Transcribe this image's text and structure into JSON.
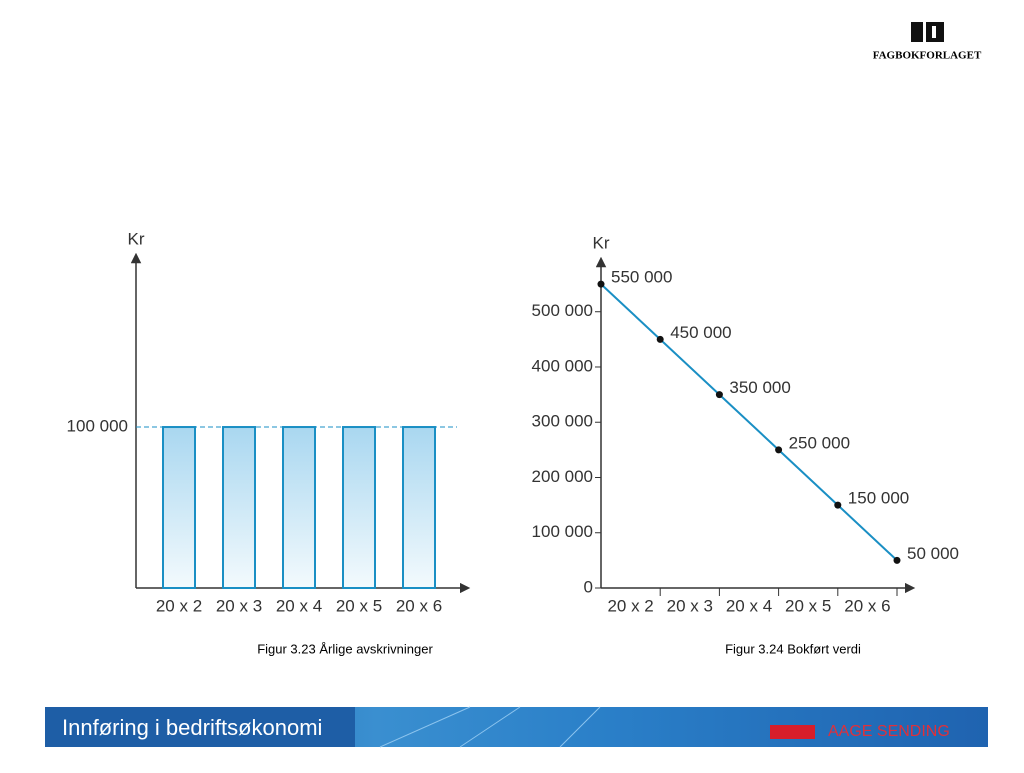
{
  "logo": "FAGBOKFORLAGET",
  "footer": {
    "title": "Innføring i bedriftsøkonomi",
    "author": "AAGE SENDING"
  },
  "chart_data": [
    {
      "type": "bar",
      "caption": "Figur 3.23 Årlige avskrivninger",
      "y_label": "Kr",
      "categories": [
        "20 x 2",
        "20 x 3",
        "20 x 4",
        "20 x 5",
        "20 x 6"
      ],
      "values": [
        100000,
        100000,
        100000,
        100000,
        100000
      ],
      "color": "#1a8fc4",
      "ylim": [
        0,
        205000
      ],
      "yticks": [
        {
          "value": 100000,
          "label": "100 000"
        }
      ],
      "grid": true
    },
    {
      "type": "line",
      "caption": "Figur 3.24 Bokført verdi",
      "y_label": "Kr",
      "categories": [
        "20 x 2",
        "20 x 3",
        "20 x 4",
        "20 x 5",
        "20 x 6",
        null
      ],
      "values": [
        550000,
        450000,
        350000,
        250000,
        150000,
        50000
      ],
      "value_labels": [
        "550 000",
        "450 000",
        "350 000",
        "250 000",
        "150 000",
        "50 000"
      ],
      "color": "#1a8fc4",
      "ylim": [
        0,
        590000
      ],
      "yticks": [
        0,
        {
          "value": 100000,
          "label": "100 000"
        },
        {
          "value": 200000,
          "label": "200 000"
        },
        {
          "value": 300000,
          "label": "300 000"
        },
        {
          "value": 400000,
          "label": "400 000"
        },
        {
          "value": 500000,
          "label": "500 000"
        }
      ],
      "grid": false
    }
  ]
}
